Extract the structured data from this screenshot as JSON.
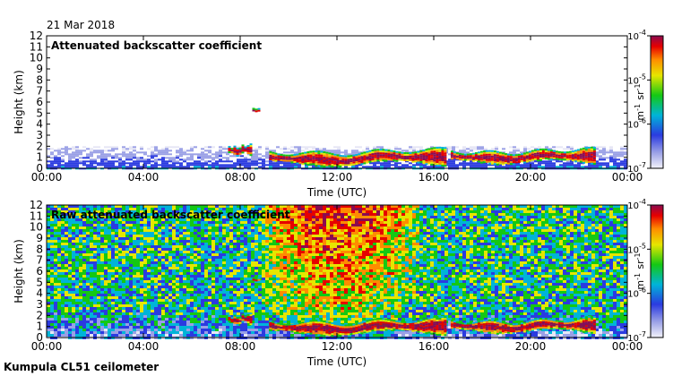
{
  "date": "21 Mar 2018",
  "footer": "Kumpula CL51 ceilometer",
  "colors": {
    "background": "#ffffff",
    "colormap": [
      "#e6e6f5",
      "#9aa0e6",
      "#2b3be0",
      "#00b4d8",
      "#14c814",
      "#e6e600",
      "#ff8c00",
      "#e60000",
      "#8b0a50"
    ]
  },
  "chart_data": [
    {
      "type": "heatmap",
      "title": "Attenuated backscatter coefficient",
      "xlabel": "Time (UTC)",
      "ylabel": "Height (km)",
      "x_ticks": [
        "00:00",
        "04:00",
        "08:00",
        "12:00",
        "16:00",
        "20:00",
        "00:00"
      ],
      "y_ticks": [
        "0",
        "1",
        "2",
        "3",
        "4",
        "5",
        "6",
        "7",
        "8",
        "9",
        "10",
        "11",
        "12"
      ],
      "xlim_hours": [
        0,
        24
      ],
      "ylim_km": [
        0,
        12
      ],
      "colorbar": {
        "ticks": [
          "10-7",
          "10-6",
          "10-5",
          "10-4"
        ],
        "label": "m-1 sr-1",
        "scale": "log",
        "range": [
          1e-07,
          0.0001
        ]
      },
      "features": [
        {
          "kind": "boundary_layer",
          "from_h": 0,
          "to_h": 24,
          "top_km": 2.0
        },
        {
          "kind": "cloud",
          "from_h": 7.5,
          "to_h": 8.4,
          "base_km": 1.2,
          "top_km": 2.3
        },
        {
          "kind": "cloud",
          "from_h": 8.5,
          "to_h": 8.8,
          "base_km": 5.1,
          "top_km": 5.6
        },
        {
          "kind": "cloud",
          "from_h": 9.2,
          "to_h": 16.5,
          "base_km": 0.2,
          "top_km": 2.0
        },
        {
          "kind": "cloud",
          "from_h": 16.7,
          "to_h": 22.7,
          "base_km": 0.4,
          "top_km": 2.0
        }
      ]
    },
    {
      "type": "heatmap",
      "title": "Raw attenuated backscatter coefficient",
      "xlabel": "Time (UTC)",
      "ylabel": "Height (km)",
      "x_ticks": [
        "00:00",
        "04:00",
        "08:00",
        "12:00",
        "16:00",
        "20:00",
        "00:00"
      ],
      "y_ticks": [
        "0",
        "1",
        "2",
        "3",
        "4",
        "5",
        "6",
        "7",
        "8",
        "9",
        "10",
        "11",
        "12"
      ],
      "xlim_hours": [
        0,
        24
      ],
      "ylim_km": [
        0,
        12
      ],
      "colorbar": {
        "ticks": [
          "10-7",
          "10-6",
          "10-5",
          "10-4"
        ],
        "label": "m-1 sr-1",
        "scale": "log",
        "range": [
          1e-07,
          0.0001
        ]
      },
      "features": [
        {
          "kind": "noise_field",
          "from_h": 0,
          "to_h": 24
        },
        {
          "kind": "solar_noise",
          "from_h": 8.8,
          "to_h": 16.0,
          "peak_h": 12.0
        },
        {
          "kind": "cloud",
          "from_h": 7.5,
          "to_h": 8.4,
          "base_km": 1.2,
          "top_km": 2.3
        },
        {
          "kind": "cloud",
          "from_h": 8.5,
          "to_h": 8.8,
          "base_km": 5.1,
          "top_km": 5.6
        },
        {
          "kind": "cloud",
          "from_h": 9.2,
          "to_h": 16.5,
          "base_km": 0.2,
          "top_km": 2.0
        },
        {
          "kind": "cloud",
          "from_h": 16.7,
          "to_h": 22.7,
          "base_km": 0.4,
          "top_km": 2.0
        }
      ]
    }
  ]
}
